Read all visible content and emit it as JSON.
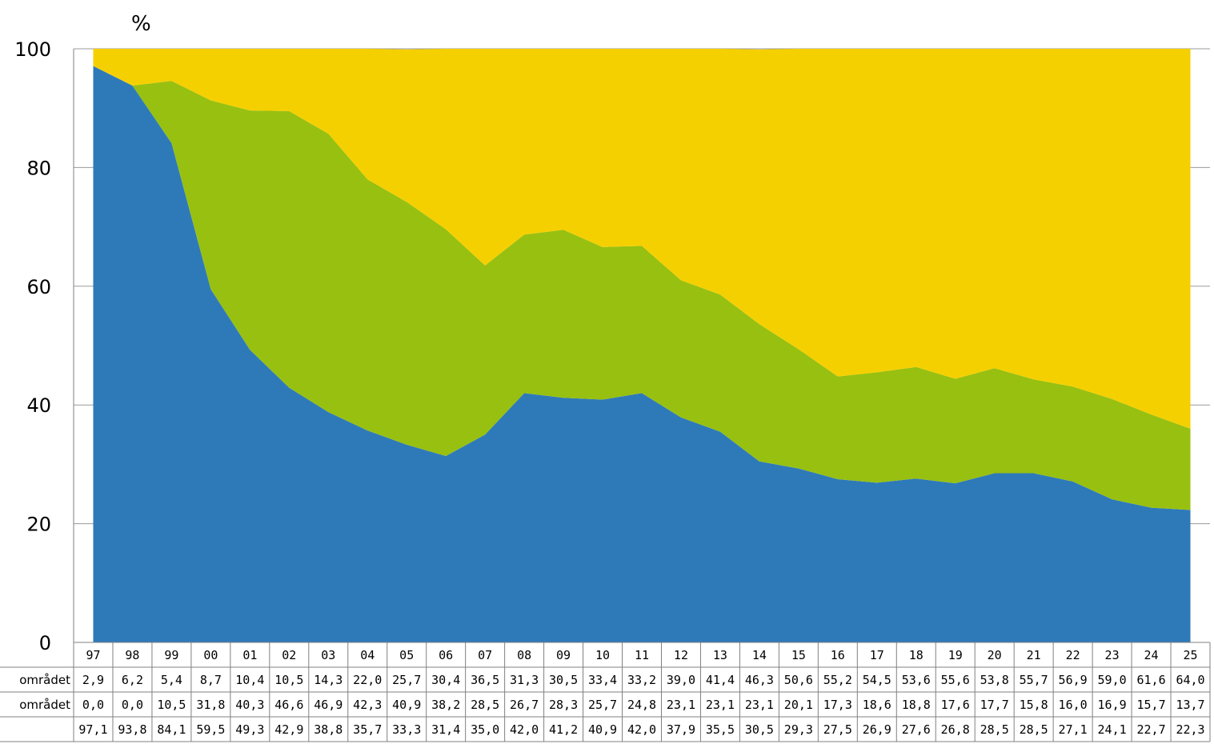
{
  "chart_data": {
    "type": "area",
    "stacked": true,
    "unit_label": "%",
    "ylim": [
      0,
      100
    ],
    "y_ticks": [
      "0",
      "20",
      "40",
      "60",
      "80",
      "100"
    ],
    "grid": "horizontal",
    "categories": [
      "97",
      "98",
      "99",
      "00",
      "01",
      "02",
      "03",
      "04",
      "05",
      "06",
      "07",
      "08",
      "09",
      "10",
      "11",
      "12",
      "13",
      "14",
      "15",
      "16",
      "17",
      "18",
      "19",
      "20",
      "21",
      "22",
      "23",
      "24",
      "25"
    ],
    "series": [
      {
        "color": "#2e7ab9",
        "label_visible": "",
        "values": [
          97.1,
          93.8,
          84.1,
          59.5,
          49.3,
          42.9,
          38.8,
          35.7,
          33.3,
          31.4,
          35.0,
          42.0,
          41.2,
          40.9,
          42.0,
          37.9,
          35.5,
          30.5,
          29.3,
          27.5,
          26.9,
          27.6,
          26.8,
          28.5,
          28.5,
          27.1,
          24.1,
          22.7,
          22.3
        ],
        "table_values": [
          "97,1",
          "93,8",
          "84,1",
          "59,5",
          "49,3",
          "42,9",
          "38,8",
          "35,7",
          "33,3",
          "31,4",
          "35,0",
          "42,0",
          "41,2",
          "40,9",
          "42,0",
          "37,9",
          "35,5",
          "30,5",
          "29,3",
          "27,5",
          "26,9",
          "27,6",
          "26,8",
          "28,5",
          "28,5",
          "27,1",
          "24,1",
          "22,7",
          "22,3"
        ]
      },
      {
        "color": "#98c010",
        "label_visible": "området",
        "values": [
          0.0,
          0.0,
          10.5,
          31.8,
          40.3,
          46.6,
          46.9,
          42.3,
          40.9,
          38.2,
          28.5,
          26.7,
          28.3,
          25.7,
          24.8,
          23.1,
          23.1,
          23.1,
          20.1,
          17.3,
          18.6,
          18.8,
          17.6,
          17.7,
          15.8,
          16.0,
          16.9,
          15.7,
          13.7
        ],
        "table_values": [
          "0,0",
          "0,0",
          "10,5",
          "31,8",
          "40,3",
          "46,6",
          "46,9",
          "42,3",
          "40,9",
          "38,2",
          "28,5",
          "26,7",
          "28,3",
          "25,7",
          "24,8",
          "23,1",
          "23,1",
          "23,1",
          "20,1",
          "17,3",
          "18,6",
          "18,8",
          "17,6",
          "17,7",
          "15,8",
          "16,0",
          "16,9",
          "15,7",
          "13,7"
        ]
      },
      {
        "color": "#f5d000",
        "label_visible": "området",
        "values": [
          2.9,
          6.2,
          5.4,
          8.7,
          10.4,
          10.5,
          14.3,
          22.0,
          25.7,
          30.4,
          36.5,
          31.3,
          30.5,
          33.4,
          33.2,
          39.0,
          41.4,
          46.3,
          50.6,
          55.2,
          54.5,
          53.6,
          55.6,
          53.8,
          55.7,
          56.9,
          59.0,
          61.6,
          64.0
        ],
        "table_values": [
          "2,9",
          "6,2",
          "5,4",
          "8,7",
          "10,4",
          "10,5",
          "14,3",
          "22,0",
          "25,7",
          "30,4",
          "36,5",
          "31,3",
          "30,5",
          "33,4",
          "33,2",
          "39,0",
          "41,4",
          "46,3",
          "50,6",
          "55,2",
          "54,5",
          "53,6",
          "55,6",
          "53,8",
          "55,7",
          "56,9",
          "59,0",
          "61,6",
          "64,0"
        ]
      }
    ]
  }
}
